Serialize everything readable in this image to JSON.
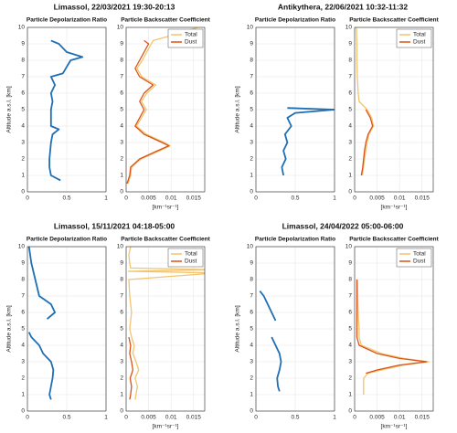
{
  "chart_data": [
    {
      "type": "line",
      "suptitle": "Limassol, 22/03/2021 19:30-20:13",
      "title": "Particle Depolarization Ratio",
      "ylabel": "Altitude a.s.l. [km]",
      "y": [
        0.7,
        1,
        1.5,
        2,
        2.5,
        3,
        3.5,
        3.8,
        4,
        4.3,
        5,
        5.5,
        6,
        6.5,
        7,
        7.2,
        7.6,
        8,
        8.2,
        8.5,
        9,
        9.2
      ],
      "series": [
        {
          "color": "#1f6fb4",
          "values": [
            0.42,
            0.3,
            0.28,
            0.28,
            0.29,
            0.3,
            0.32,
            0.4,
            0.3,
            0.3,
            0.3,
            0.32,
            0.3,
            0.35,
            0.3,
            0.45,
            0.5,
            0.55,
            0.7,
            0.5,
            0.4,
            0.3
          ]
        }
      ],
      "xlim": [
        0,
        1
      ],
      "xticks": [
        0,
        0.5,
        1
      ],
      "ylim": [
        0,
        10
      ],
      "yticks": [
        0,
        1,
        2,
        3,
        4,
        5,
        6,
        7,
        8,
        9,
        10
      ],
      "grid": true
    },
    {
      "type": "line",
      "title": "Particle Backscatter Coefficient",
      "xlabel": "[km⁻¹sr⁻¹]",
      "legend": "northeast",
      "y": [
        0.5,
        1,
        1.5,
        2,
        2.5,
        2.8,
        3,
        3.5,
        4,
        4.5,
        5,
        5.5,
        6,
        6.5,
        7,
        7.5,
        8,
        8.5,
        9,
        9.2,
        9.5,
        10
      ],
      "series": [
        {
          "name": "Total",
          "color": "#f2c46d",
          "values": [
            0.0004,
            0.001,
            0.0012,
            0.0033,
            0.0075,
            0.0098,
            0.0085,
            0.0045,
            0.0023,
            0.0034,
            0.0045,
            0.0034,
            0.0046,
            0.0066,
            0.0035,
            0.0024,
            0.0036,
            0.0046,
            0.0056,
            0.006,
            0.01,
            0.016
          ]
        },
        {
          "name": "Dust",
          "color": "#d95319",
          "values": [
            0.0002,
            0.0008,
            0.001,
            0.003,
            0.007,
            0.0095,
            0.008,
            0.004,
            0.002,
            0.003,
            0.004,
            0.003,
            0.004,
            0.006,
            0.003,
            0.002,
            0.003,
            0.004,
            0.005,
            0.004,
            null,
            null
          ]
        }
      ],
      "xlim": [
        0,
        0.0175
      ],
      "xticks": [
        0,
        0.005,
        0.01,
        0.015
      ],
      "ylim": [
        0,
        10
      ],
      "yticks": [
        0,
        1,
        2,
        3,
        4,
        5,
        6,
        7,
        8,
        9,
        10
      ],
      "grid": true
    },
    {
      "type": "line",
      "suptitle": "Antikythera, 22/06/2021 10:32-11:32",
      "title": "Particle Depolarization Ratio",
      "ylabel": "Altitude a.s.l. [km]",
      "y": [
        1,
        1.5,
        2,
        2.5,
        3,
        3.5,
        4,
        4.5,
        4.8,
        5,
        5.1
      ],
      "series": [
        {
          "color": "#1f6fb4",
          "values": [
            0.35,
            0.33,
            0.38,
            0.35,
            0.4,
            0.37,
            0.45,
            0.4,
            0.5,
            1,
            0.4
          ]
        }
      ],
      "xlim": [
        0,
        1
      ],
      "xticks": [
        0,
        0.5,
        1
      ],
      "ylim": [
        0,
        10
      ],
      "yticks": [
        0,
        1,
        2,
        3,
        4,
        5,
        6,
        7,
        8,
        9,
        10
      ],
      "grid": true
    },
    {
      "type": "line",
      "title": "Particle Backscatter Coefficient",
      "xlabel": "[km⁻¹sr⁻¹]",
      "legend": "northeast",
      "y": [
        1,
        1.5,
        2,
        2.5,
        3,
        3.5,
        4,
        4.5,
        5,
        5.5,
        6,
        7,
        8,
        9,
        10
      ],
      "series": [
        {
          "name": "Total",
          "color": "#f2c46d",
          "values": [
            0.0017,
            0.002,
            0.0022,
            0.0025,
            0.0028,
            0.0032,
            0.0042,
            0.0038,
            0.0028,
            0.001,
            0.0008,
            0.0006,
            0.0005,
            0.0005,
            0.0004
          ]
        },
        {
          "name": "Dust",
          "color": "#d95319",
          "values": [
            0.0015,
            0.0018,
            0.002,
            0.0022,
            0.0025,
            0.003,
            0.004,
            0.0035,
            0.0025,
            null,
            null,
            null,
            null,
            null,
            null
          ]
        }
      ],
      "xlim": [
        0,
        0.0175
      ],
      "xticks": [
        0,
        0.005,
        0.01,
        0.015
      ],
      "ylim": [
        0,
        10
      ],
      "yticks": [
        0,
        1,
        2,
        3,
        4,
        5,
        6,
        7,
        8,
        9,
        10
      ],
      "grid": true
    },
    {
      "type": "line",
      "suptitle": "Limassol, 15/11/2021 04:18-05:00",
      "title": "Particle Depolarization Ratio",
      "ylabel": "Altitude a.s.l. [km]",
      "y": [
        0.7,
        1,
        1.5,
        2,
        2.5,
        3,
        3.5,
        4,
        4.5,
        4.8,
        5.2,
        5.6,
        6,
        6.5,
        7,
        8,
        9,
        10
      ],
      "series": [
        {
          "color": "#1f6fb4",
          "values": [
            0.3,
            0.28,
            0.3,
            0.32,
            0.33,
            0.3,
            0.2,
            0.15,
            0.05,
            0.02,
            null,
            0.25,
            0.35,
            0.3,
            0.15,
            0.1,
            0.05,
            0.02
          ]
        }
      ],
      "xlim": [
        0,
        1
      ],
      "xticks": [
        0,
        0.5,
        1
      ],
      "ylim": [
        0,
        10
      ],
      "yticks": [
        0,
        1,
        2,
        3,
        4,
        5,
        6,
        7,
        8,
        9,
        10
      ],
      "grid": true
    },
    {
      "type": "line",
      "title": "Particle Backscatter Coefficient",
      "xlabel": "[km⁻¹sr⁻¹]",
      "legend": "northeast",
      "y": [
        0.7,
        1,
        1.5,
        2,
        2.5,
        3,
        3.5,
        4,
        4.5,
        5,
        6,
        7,
        8,
        8.4,
        8.5,
        8.6,
        8.7,
        9,
        9.5,
        10
      ],
      "series": [
        {
          "name": "Total",
          "color": "#f2c46d",
          "values": [
            0.002,
            0.0022,
            0.0025,
            0.002,
            0.0028,
            0.0022,
            0.0015,
            0.0018,
            0.0012,
            0.0008,
            0.0012,
            0.0008,
            0.0006,
            0.02,
            0.0005,
            0.02,
            0.001,
            0.0008,
            0.0006,
            0.001
          ]
        },
        {
          "name": "Dust",
          "color": "#d95319",
          "values": [
            0.0008,
            0.001,
            0.0012,
            0.0009,
            0.0015,
            0.0012,
            0.0008,
            0.001,
            0.0006,
            null,
            null,
            null,
            null,
            null,
            null,
            null,
            null,
            null,
            null,
            null
          ]
        }
      ],
      "xlim": [
        0,
        0.0175
      ],
      "xticks": [
        0,
        0.005,
        0.01,
        0.015
      ],
      "ylim": [
        0,
        10
      ],
      "yticks": [
        0,
        1,
        2,
        3,
        4,
        5,
        6,
        7,
        8,
        9,
        10
      ],
      "grid": true
    },
    {
      "type": "line",
      "suptitle": "Limassol, 24/04/2022 05:00-06:00",
      "title": "Particle Depolarization Ratio",
      "ylabel": "Altitude a.s.l. [km]",
      "y": [
        1.2,
        1.5,
        2,
        2.5,
        3,
        3.5,
        4,
        4.5,
        5,
        5.5,
        6,
        6.5,
        7,
        7.3
      ],
      "series": [
        {
          "color": "#1f6fb4",
          "values": [
            0.3,
            0.28,
            0.27,
            0.3,
            0.32,
            0.3,
            0.25,
            0.2,
            null,
            0.25,
            0.2,
            0.15,
            0.1,
            0.05
          ]
        }
      ],
      "xlim": [
        0,
        1
      ],
      "xticks": [
        0,
        0.5,
        1
      ],
      "ylim": [
        0,
        10
      ],
      "yticks": [
        0,
        1,
        2,
        3,
        4,
        5,
        6,
        7,
        8,
        9,
        10
      ],
      "grid": true
    },
    {
      "type": "line",
      "title": "Particle Backscatter Coefficient",
      "xlabel": "[km⁻¹sr⁻¹]",
      "legend": "northeast",
      "y": [
        1,
        1.5,
        2,
        2.3,
        2.5,
        2.8,
        3,
        3.2,
        3.5,
        4,
        4.5,
        5,
        6,
        7,
        8
      ],
      "series": [
        {
          "name": "Total",
          "color": "#f2c46d",
          "values": [
            0.002,
            0.002,
            0.002,
            0.003,
            0.006,
            0.011,
            0.0165,
            0.011,
            0.006,
            0.0015,
            0.001,
            0.001,
            0.0008,
            0.0007,
            0.0006
          ]
        },
        {
          "name": "Dust",
          "color": "#d95319",
          "values": [
            null,
            null,
            null,
            0.0025,
            0.005,
            0.01,
            0.016,
            0.01,
            0.005,
            0.001,
            0.0005,
            0.0005,
            0.0005,
            0.0005,
            0.0005
          ]
        }
      ],
      "xlim": [
        0,
        0.0175
      ],
      "xticks": [
        0,
        0.005,
        0.01,
        0.015
      ],
      "ylim": [
        0,
        10
      ],
      "yticks": [
        0,
        1,
        2,
        3,
        4,
        5,
        6,
        7,
        8,
        9,
        10
      ],
      "grid": true
    }
  ]
}
